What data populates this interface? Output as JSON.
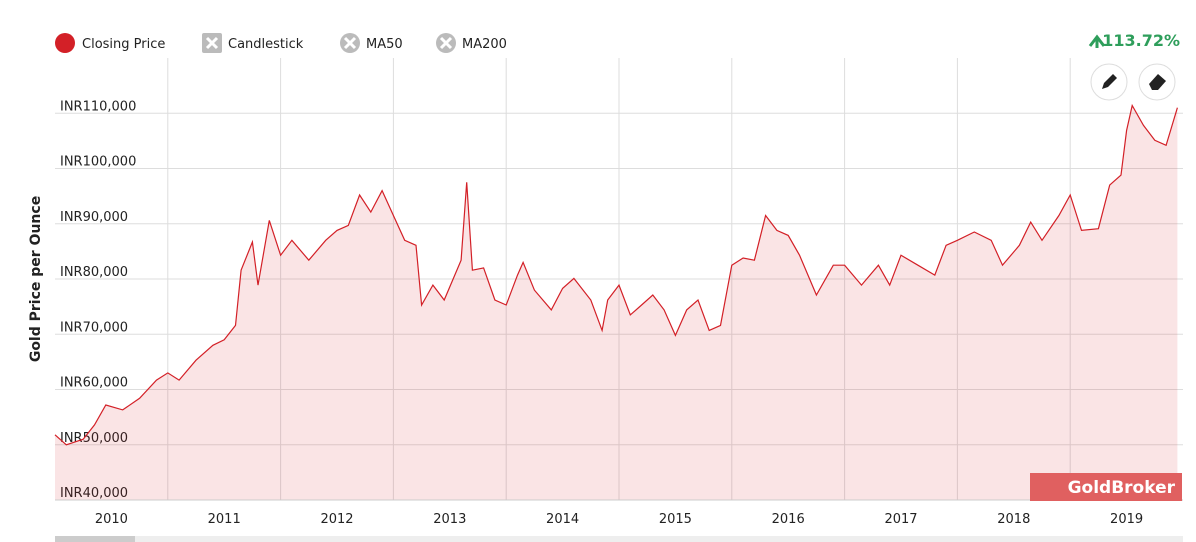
{
  "chart_data": {
    "type": "area",
    "y_axis_label": "Gold Price per Ounce",
    "change_label": "113.72%",
    "inactive_series": [
      "Candlestick",
      "MA50",
      "MA200"
    ],
    "watermark": "GoldBroker",
    "x": [
      2010.0,
      2010.1,
      2010.25,
      2010.35,
      2010.45,
      2010.6,
      2010.75,
      2010.9,
      2011.0,
      2011.1,
      2011.25,
      2011.4,
      2011.5,
      2011.6,
      2011.65,
      2011.75,
      2011.8,
      2011.9,
      2012.0,
      2012.1,
      2012.25,
      2012.4,
      2012.5,
      2012.6,
      2012.7,
      2012.8,
      2012.9,
      2013.0,
      2013.1,
      2013.2,
      2013.25,
      2013.35,
      2013.45,
      2013.6,
      2013.65,
      2013.7,
      2013.8,
      2013.9,
      2014.0,
      2014.1,
      2014.15,
      2014.25,
      2014.4,
      2014.5,
      2014.6,
      2014.75,
      2014.85,
      2014.9,
      2015.0,
      2015.1,
      2015.2,
      2015.3,
      2015.4,
      2015.5,
      2015.6,
      2015.7,
      2015.8,
      2015.9,
      2016.0,
      2016.1,
      2016.2,
      2016.3,
      2016.4,
      2016.5,
      2016.6,
      2016.75,
      2016.9,
      2017.0,
      2017.15,
      2017.3,
      2017.4,
      2017.5,
      2017.65,
      2017.8,
      2017.9,
      2018.0,
      2018.15,
      2018.3,
      2018.4,
      2018.55,
      2018.65,
      2018.75,
      2018.9,
      2019.0,
      2019.1,
      2019.25,
      2019.35,
      2019.45,
      2019.5,
      2019.55,
      2019.65,
      2019.75,
      2019.85,
      2019.95
    ],
    "series": [
      {
        "name": "Closing Price",
        "color": "#d32027",
        "values": [
          51800,
          50000,
          51000,
          53600,
          57200,
          56300,
          58400,
          61700,
          63000,
          61700,
          65300,
          68000,
          69000,
          71600,
          81600,
          86700,
          78900,
          90600,
          84300,
          87000,
          83400,
          87000,
          88800,
          89700,
          95200,
          92100,
          96000,
          91500,
          87000,
          86100,
          75300,
          78900,
          76200,
          83400,
          97500,
          81600,
          82000,
          76200,
          75300,
          80700,
          83000,
          78000,
          74400,
          78300,
          80100,
          76200,
          70700,
          76200,
          78900,
          73500,
          75300,
          77100,
          74400,
          69800,
          74400,
          76200,
          70700,
          71600,
          82500,
          83800,
          83400,
          91500,
          88800,
          87900,
          84300,
          77100,
          82500,
          82500,
          78900,
          82500,
          78900,
          84300,
          82500,
          80700,
          86100,
          87000,
          88500,
          87000,
          82500,
          86100,
          90300,
          87000,
          91500,
          95200,
          88800,
          89100,
          97000,
          98800,
          106900,
          111400,
          107800,
          105100,
          104200,
          111000
        ]
      }
    ],
    "xlim": [
      2010,
      2020
    ],
    "xticks": [
      2010,
      2011,
      2012,
      2013,
      2014,
      2015,
      2016,
      2017,
      2018,
      2019
    ],
    "ylim": [
      40000,
      120000
    ],
    "yticks": [
      {
        "value": 40000,
        "label": "INR40,000"
      },
      {
        "value": 50000,
        "label": "INR50,000"
      },
      {
        "value": 60000,
        "label": "INR60,000"
      },
      {
        "value": 70000,
        "label": "INR70,000"
      },
      {
        "value": 80000,
        "label": "INR80,000"
      },
      {
        "value": 90000,
        "label": "INR90,000"
      },
      {
        "value": 100000,
        "label": "INR100,000"
      },
      {
        "value": 110000,
        "label": "INR110,000"
      }
    ],
    "grid": true
  }
}
